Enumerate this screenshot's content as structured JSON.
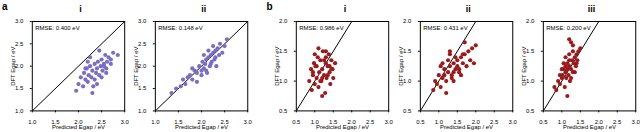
{
  "chart_data": [
    {
      "type": "scatter",
      "panel": "a",
      "title": "i",
      "annotation": "RMSE: 0.400 eV",
      "x_label": "Predicted Egap / eV",
      "y_label": "DFT Egap / eV",
      "color": "#7a6ec0",
      "marker": "circle",
      "xlim": [
        1.0,
        3.0
      ],
      "ylim": [
        1.0,
        3.0
      ],
      "xticks": [
        {
          "value": 1.0,
          "label": "1.0"
        },
        {
          "value": 1.5,
          "label": "1.5"
        },
        {
          "value": 2.0,
          "label": "2.0"
        },
        {
          "value": 2.5,
          "label": "2.5"
        },
        {
          "value": 3.0,
          "label": "3.0"
        }
      ],
      "yticks": [
        {
          "value": 1.0,
          "label": "1.0"
        },
        {
          "value": 1.5,
          "label": "1.5"
        },
        {
          "value": 2.0,
          "label": "2.0"
        },
        {
          "value": 2.5,
          "label": "2.5"
        },
        {
          "value": 3.0,
          "label": "3.0"
        }
      ],
      "x": [
        1.95,
        2.0,
        2.05,
        2.1,
        2.12,
        2.15,
        2.18,
        2.2,
        2.22,
        2.25,
        2.28,
        2.3,
        2.32,
        2.35,
        2.38,
        2.4,
        2.42,
        2.45,
        2.48,
        2.5,
        2.52,
        2.55,
        2.58,
        2.6,
        2.62,
        2.65,
        2.7,
        2.75,
        2.3,
        2.4,
        2.5,
        2.2,
        2.35,
        2.45,
        2.55,
        2.6,
        2.25,
        2.15,
        2.7,
        2.85
      ],
      "values": [
        1.45,
        1.6,
        1.75,
        1.55,
        1.85,
        1.7,
        1.95,
        1.65,
        1.8,
        2.0,
        1.75,
        1.9,
        1.55,
        2.05,
        1.85,
        1.95,
        2.1,
        1.8,
        2.0,
        2.15,
        1.9,
        2.05,
        2.25,
        1.95,
        2.1,
        2.2,
        2.05,
        2.3,
        1.4,
        1.6,
        1.75,
        2.1,
        1.7,
        2.35,
        2.0,
        1.85,
        2.2,
        1.95,
        2.15,
        2.25
      ]
    },
    {
      "type": "scatter",
      "panel": "a",
      "title": "ii",
      "annotation": "RMSE: 0.148 eV",
      "x_label": "Predicted Egap / eV",
      "y_label": "DFT Egap / eV",
      "color": "#7a6ec0",
      "marker": "circle",
      "xlim": [
        1.0,
        3.0
      ],
      "ylim": [
        1.0,
        3.0
      ],
      "xticks": [
        {
          "value": 1.0,
          "label": "1.0"
        },
        {
          "value": 1.5,
          "label": "1.5"
        },
        {
          "value": 2.0,
          "label": "2.0"
        },
        {
          "value": 2.5,
          "label": "2.5"
        },
        {
          "value": 3.0,
          "label": "3.0"
        }
      ],
      "yticks": [
        {
          "value": 1.0,
          "label": "1.0"
        },
        {
          "value": 1.5,
          "label": "1.5"
        },
        {
          "value": 2.0,
          "label": "2.0"
        },
        {
          "value": 2.5,
          "label": "2.5"
        },
        {
          "value": 3.0,
          "label": "3.0"
        }
      ],
      "x": [
        1.35,
        1.45,
        1.55,
        1.6,
        1.65,
        1.7,
        1.75,
        1.8,
        1.85,
        1.9,
        1.95,
        2.0,
        2.02,
        2.05,
        2.08,
        2.1,
        2.12,
        2.15,
        2.18,
        2.2,
        2.22,
        2.25,
        2.28,
        2.3,
        2.32,
        2.35,
        2.38,
        2.4,
        2.45,
        2.5,
        2.55,
        1.9,
        2.0,
        2.1,
        2.2,
        2.3,
        1.8,
        2.15,
        2.25,
        2.05
      ],
      "values": [
        1.4,
        1.5,
        1.55,
        1.7,
        1.6,
        1.75,
        1.8,
        1.7,
        1.9,
        1.85,
        2.0,
        1.9,
        2.1,
        1.95,
        2.05,
        2.15,
        1.85,
        2.2,
        2.0,
        2.25,
        2.1,
        2.3,
        2.15,
        2.35,
        2.0,
        2.4,
        2.25,
        2.5,
        2.3,
        2.45,
        2.6,
        1.65,
        1.8,
        1.9,
        2.05,
        2.2,
        1.95,
        2.35,
        2.45,
        2.25
      ]
    },
    {
      "type": "scatter",
      "panel": "b",
      "title": "i",
      "annotation": "RMSE: 0.986 eV",
      "x_label": "Predicted Egap / eV",
      "y_label": "DFT Egap / eV",
      "color": "#9a1b1e",
      "marker": "circle",
      "xlim": [
        0.5,
        3.0
      ],
      "ylim": [
        0.5,
        2.0
      ],
      "xticks": [
        {
          "value": 0.5,
          "label": "0.5"
        },
        {
          "value": 1.0,
          "label": "1.0"
        },
        {
          "value": 1.5,
          "label": "1.5"
        },
        {
          "value": 2.0,
          "label": "2.0"
        },
        {
          "value": 2.5,
          "label": "2.5"
        },
        {
          "value": 3.0,
          "label": "3.0"
        }
      ],
      "yticks": [
        {
          "value": 0.5,
          "label": "0.5"
        },
        {
          "value": 1.0,
          "label": "1.0"
        },
        {
          "value": 1.5,
          "label": "1.5"
        },
        {
          "value": 2.0,
          "label": "2.0"
        }
      ],
      "x": [
        0.85,
        0.9,
        0.92,
        0.95,
        0.98,
        1.0,
        1.02,
        1.05,
        1.08,
        1.1,
        1.12,
        1.15,
        1.18,
        1.2,
        1.22,
        1.25,
        1.28,
        1.3,
        1.32,
        1.35,
        1.38,
        1.4,
        1.42,
        1.45,
        1.48,
        1.5,
        1.55,
        1.0,
        1.1,
        1.2,
        1.3,
        1.4,
        0.95,
        1.15,
        1.25,
        1.35,
        1.05,
        1.45,
        1.2,
        1.3
      ],
      "values": [
        1.0,
        1.2,
        0.85,
        1.1,
        1.3,
        0.95,
        1.25,
        1.05,
        1.4,
        0.9,
        1.15,
        1.35,
        1.0,
        1.2,
        1.5,
        1.1,
        0.8,
        1.3,
        1.05,
        1.25,
        1.45,
        1.15,
        0.95,
        1.35,
        1.2,
        1.05,
        1.3,
        1.45,
        1.55,
        0.75,
        1.4,
        1.25,
        1.15,
        1.0,
        1.35,
        1.1,
        1.25,
        1.2,
        1.05,
        1.5
      ]
    },
    {
      "type": "scatter",
      "panel": "b",
      "title": "ii",
      "annotation": "RMSE: 0.431 eV",
      "x_label": "Predicted Egap / eV",
      "y_label": "DFT Egap / eV",
      "color": "#9a1b1e",
      "marker": "circle",
      "xlim": [
        0.5,
        3.0
      ],
      "ylim": [
        0.5,
        2.0
      ],
      "xticks": [
        {
          "value": 0.5,
          "label": "0.5"
        },
        {
          "value": 1.0,
          "label": "1.0"
        },
        {
          "value": 1.5,
          "label": "1.5"
        },
        {
          "value": 2.0,
          "label": "2.0"
        },
        {
          "value": 2.5,
          "label": "2.5"
        },
        {
          "value": 3.0,
          "label": "3.0"
        }
      ],
      "yticks": [
        {
          "value": 0.5,
          "label": "0.5"
        },
        {
          "value": 1.0,
          "label": "1.0"
        },
        {
          "value": 1.5,
          "label": "1.5"
        },
        {
          "value": 2.0,
          "label": "2.0"
        }
      ],
      "x": [
        0.85,
        0.9,
        0.95,
        1.0,
        1.05,
        1.1,
        1.15,
        1.2,
        1.25,
        1.3,
        1.35,
        1.4,
        1.45,
        1.5,
        1.55,
        1.6,
        1.65,
        1.7,
        1.75,
        1.8,
        1.85,
        1.9,
        2.0,
        1.1,
        1.2,
        1.3,
        1.4,
        1.5,
        1.6,
        1.7,
        1.25,
        1.35,
        1.45,
        1.55,
        1.15,
        1.05,
        1.65,
        1.95,
        1.4,
        1.3
      ],
      "values": [
        0.85,
        1.0,
        0.95,
        1.1,
        0.9,
        1.05,
        1.2,
        1.0,
        1.15,
        1.25,
        1.1,
        1.3,
        1.2,
        1.35,
        1.15,
        1.4,
        1.3,
        1.45,
        1.25,
        1.5,
        1.35,
        1.55,
        1.6,
        1.3,
        0.8,
        1.45,
        1.0,
        1.25,
        1.1,
        1.65,
        1.35,
        1.05,
        1.4,
        1.2,
        1.1,
        1.25,
        1.45,
        1.3,
        1.15,
        1.5
      ]
    },
    {
      "type": "scatter",
      "panel": "b",
      "title": "iii",
      "annotation": "RMSE: 0.200 eV",
      "x_label": "Predicted Egap / eV",
      "y_label": "DFT Egap / eV",
      "color": "#9a1b1e",
      "marker": "circle",
      "xlim": [
        0.5,
        3.0
      ],
      "ylim": [
        0.5,
        2.0
      ],
      "xticks": [
        {
          "value": 0.5,
          "label": "0.5"
        },
        {
          "value": 1.0,
          "label": "1.0"
        },
        {
          "value": 1.5,
          "label": "1.5"
        },
        {
          "value": 2.0,
          "label": "2.0"
        },
        {
          "value": 2.5,
          "label": "2.5"
        },
        {
          "value": 3.0,
          "label": "3.0"
        }
      ],
      "yticks": [
        {
          "value": 0.5,
          "label": "0.5"
        },
        {
          "value": 1.0,
          "label": "1.0"
        },
        {
          "value": 1.5,
          "label": "1.5"
        },
        {
          "value": 2.0,
          "label": "2.0"
        }
      ],
      "x": [
        0.8,
        0.85,
        0.9,
        0.95,
        1.0,
        1.02,
        1.05,
        1.08,
        1.1,
        1.12,
        1.15,
        1.18,
        1.2,
        1.22,
        1.25,
        1.28,
        1.3,
        1.32,
        1.35,
        1.38,
        1.4,
        1.42,
        1.45,
        1.5,
        1.0,
        1.1,
        1.2,
        1.3,
        1.15,
        1.25,
        1.05,
        1.35,
        1.2,
        1.1,
        1.3,
        1.25,
        0.95,
        1.4,
        1.15,
        1.2
      ],
      "values": [
        0.9,
        0.85,
        1.0,
        0.95,
        1.05,
        1.1,
        1.2,
        0.9,
        1.15,
        1.05,
        1.3,
        1.1,
        1.25,
        1.0,
        1.2,
        1.35,
        1.15,
        1.3,
        1.4,
        1.25,
        1.45,
        1.35,
        1.5,
        1.55,
        1.2,
        1.4,
        1.45,
        1.6,
        0.75,
        1.05,
        1.3,
        1.15,
        1.35,
        1.25,
        1.5,
        1.65,
        1.1,
        1.3,
        1.2,
        1.7
      ]
    }
  ]
}
